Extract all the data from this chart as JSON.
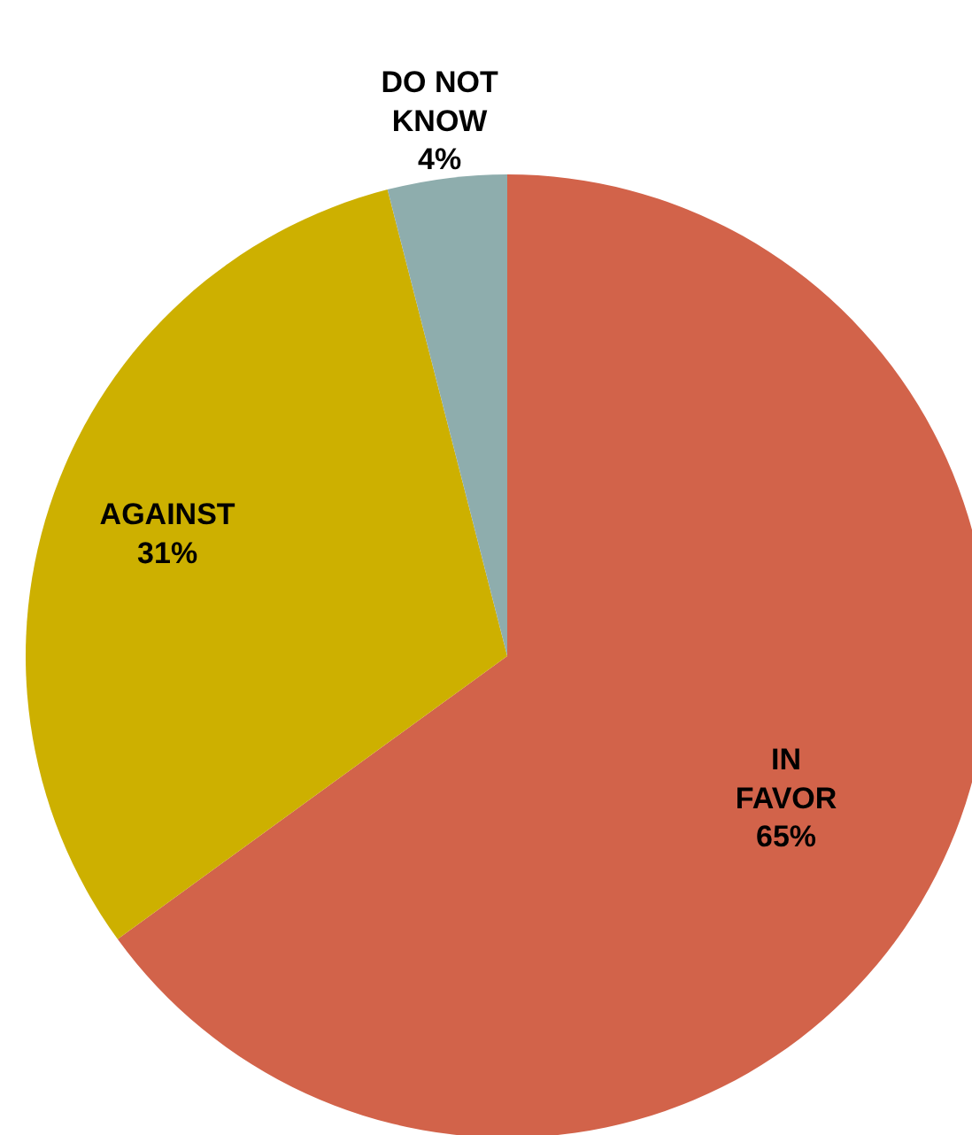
{
  "chart_data": {
    "type": "pie",
    "categories": [
      "IN FAVOR",
      "AGAINST",
      "DO NOT KNOW"
    ],
    "values": [
      65,
      31,
      4
    ],
    "colors": [
      "#d2634a",
      "#cdb000",
      "#8eadad"
    ],
    "value_labels": [
      "65%",
      "31%",
      "4%"
    ]
  }
}
